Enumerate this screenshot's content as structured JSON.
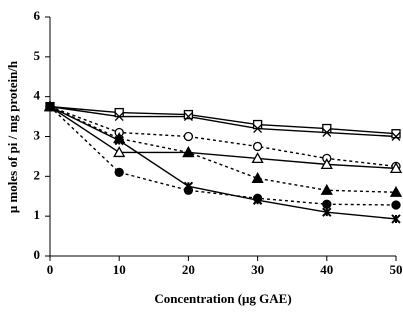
{
  "chart_data": {
    "type": "line",
    "x_label": "Concentration (μg GAE)",
    "y_label": "μ moles of pi / mg protein/h",
    "x": [
      0,
      10,
      20,
      30,
      40,
      50
    ],
    "xlim": [
      0,
      50
    ],
    "xticks": [
      0,
      10,
      20,
      30,
      40,
      50
    ],
    "ylim": [
      0,
      6
    ],
    "yticks": [
      0,
      1,
      2,
      3,
      4,
      5,
      6
    ],
    "series": [
      {
        "color": "#000000",
        "marker": "square-open",
        "dash": false,
        "values": [
          3.75,
          3.6,
          3.55,
          3.3,
          3.2,
          3.07
        ]
      },
      {
        "color": "#000000",
        "marker": "x",
        "dash": false,
        "values": [
          3.75,
          3.5,
          3.5,
          3.2,
          3.1,
          3.0
        ]
      },
      {
        "color": "#000000",
        "marker": "circle-open",
        "dash": true,
        "values": [
          3.75,
          3.1,
          3.0,
          2.75,
          2.45,
          2.25
        ]
      },
      {
        "color": "#000000",
        "marker": "triangle-open",
        "dash": false,
        "values": [
          3.75,
          2.6,
          2.6,
          2.45,
          2.3,
          2.2
        ]
      },
      {
        "color": "#000000",
        "marker": "triangle-filled",
        "dash": true,
        "values": [
          3.75,
          2.95,
          2.6,
          1.95,
          1.65,
          1.6
        ]
      },
      {
        "color": "#000000",
        "marker": "circle-filled",
        "dash": true,
        "values": [
          3.75,
          2.1,
          1.65,
          1.45,
          1.3,
          1.28
        ]
      },
      {
        "color": "#000000",
        "marker": "star",
        "dash": false,
        "values": [
          3.75,
          2.9,
          1.75,
          1.4,
          1.1,
          0.93
        ]
      }
    ]
  }
}
